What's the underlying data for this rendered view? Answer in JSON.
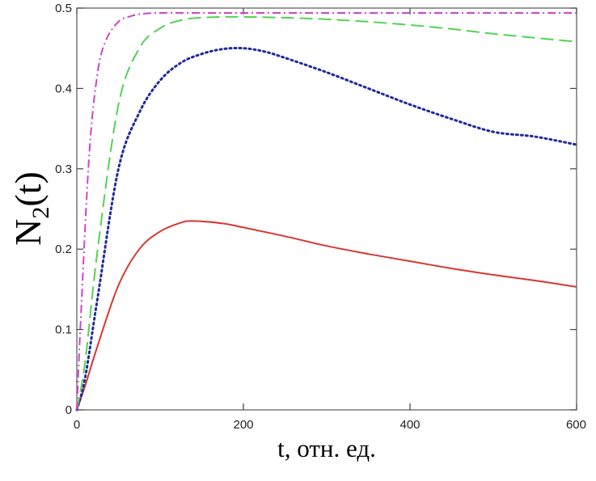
{
  "chart_data": {
    "type": "line",
    "xlabel": "t, отн. ед.",
    "ylabel": {
      "main": "N",
      "subscript": "2",
      "suffix": "(t)"
    },
    "xlim": [
      0,
      600
    ],
    "ylim": [
      0,
      0.5
    ],
    "xticks": [
      0,
      200,
      400,
      600
    ],
    "yticks": [
      0,
      0.1,
      0.2,
      0.3,
      0.4,
      0.5
    ],
    "xtick_labels": [
      "0",
      "200",
      "400",
      "600"
    ],
    "ytick_labels": [
      "0",
      "0.1",
      "0.2",
      "0.3",
      "0.4",
      "0.5"
    ],
    "grid": false,
    "legend": "none",
    "series": [
      {
        "style": "solid",
        "color": "#d9362f",
        "x": [
          0,
          10,
          25,
          50,
          75,
          100,
          125,
          140,
          175,
          200,
          250,
          300,
          350,
          400,
          450,
          500,
          550,
          600
        ],
        "y": [
          0,
          0.03,
          0.08,
          0.155,
          0.2,
          0.222,
          0.233,
          0.235,
          0.232,
          0.227,
          0.216,
          0.204,
          0.194,
          0.185,
          0.176,
          0.168,
          0.161,
          0.153
        ]
      },
      {
        "style": "dotted",
        "color": "#1f2a9c",
        "x": [
          0,
          10,
          25,
          50,
          75,
          100,
          125,
          150,
          175,
          200,
          225,
          250,
          300,
          350,
          400,
          450,
          500,
          550,
          600
        ],
        "y": [
          0,
          0.04,
          0.14,
          0.3,
          0.37,
          0.41,
          0.432,
          0.443,
          0.449,
          0.45,
          0.446,
          0.438,
          0.42,
          0.4,
          0.38,
          0.362,
          0.346,
          0.34,
          0.33
        ]
      },
      {
        "style": "dashed",
        "color": "#55d155",
        "x": [
          0,
          10,
          25,
          50,
          75,
          100,
          125,
          150,
          175,
          200,
          250,
          300,
          350,
          400,
          450,
          500,
          550,
          600
        ],
        "y": [
          0,
          0.06,
          0.2,
          0.38,
          0.45,
          0.475,
          0.485,
          0.488,
          0.489,
          0.489,
          0.488,
          0.486,
          0.483,
          0.479,
          0.474,
          0.468,
          0.463,
          0.458
        ]
      },
      {
        "style": "dashdot",
        "color": "#cc44cc",
        "x": [
          0,
          5,
          15,
          25,
          35,
          50,
          65,
          80,
          100,
          150,
          200,
          300,
          400,
          500,
          600
        ],
        "y": [
          0,
          0.12,
          0.32,
          0.42,
          0.46,
          0.483,
          0.49,
          0.493,
          0.494,
          0.494,
          0.494,
          0.494,
          0.494,
          0.494,
          0.494
        ]
      }
    ]
  }
}
